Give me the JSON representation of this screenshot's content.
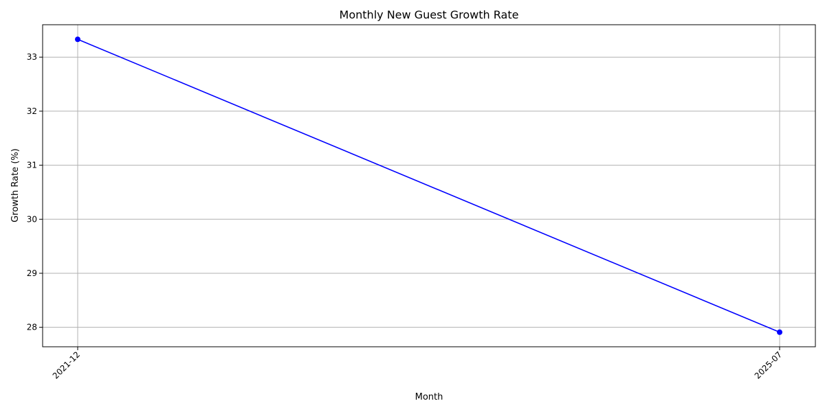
{
  "chart_data": {
    "type": "line",
    "title": "Monthly New Guest Growth Rate",
    "xlabel": "Month",
    "ylabel": "Growth Rate (%)",
    "categories": [
      "2021-12",
      "2025-07"
    ],
    "series": [
      {
        "values": [
          33.33,
          27.91
        ],
        "color": "#0000ff",
        "marker": "circle"
      }
    ],
    "yticks": [
      28,
      29,
      30,
      31,
      32,
      33
    ],
    "ylim": [
      27.64,
      33.6
    ],
    "grid": true,
    "x_tick_rotation": 45
  }
}
